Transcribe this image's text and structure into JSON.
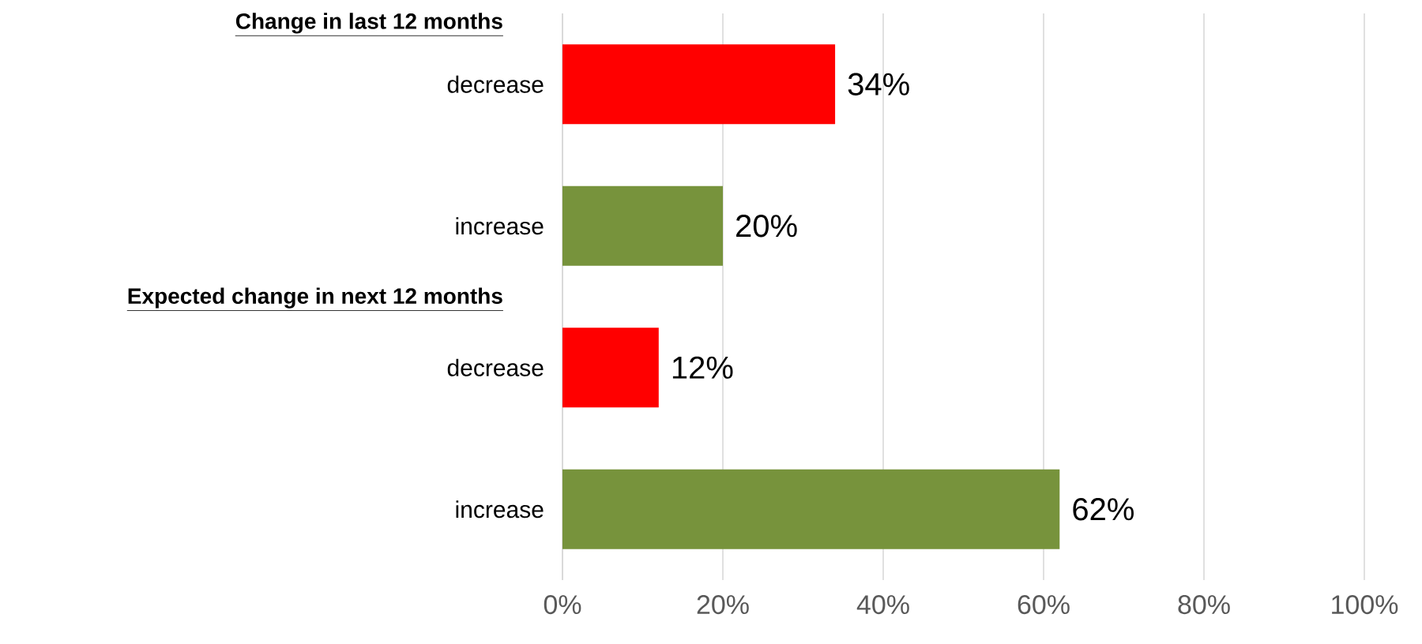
{
  "chart_data": {
    "type": "bar",
    "orientation": "horizontal",
    "categories": [
      "decrease",
      "increase",
      "decrease",
      "increase"
    ],
    "values": [
      34,
      20,
      12,
      62
    ],
    "colors": [
      "#ff0000",
      "#77933c",
      "#ff0000",
      "#77933c"
    ],
    "value_labels": [
      "34%",
      "20%",
      "12%",
      "62%"
    ],
    "annotations": [
      "Change in last 12 months",
      "Expected change in next 12 months"
    ],
    "xlim": [
      0,
      100
    ],
    "xticks": [
      {
        "value": 0,
        "label": "0%"
      },
      {
        "value": 20,
        "label": "20%"
      },
      {
        "value": 40,
        "label": "40%"
      },
      {
        "value": 60,
        "label": "60%"
      },
      {
        "value": 80,
        "label": "80%"
      },
      {
        "value": 100,
        "label": "100%"
      }
    ],
    "grid": "x"
  }
}
